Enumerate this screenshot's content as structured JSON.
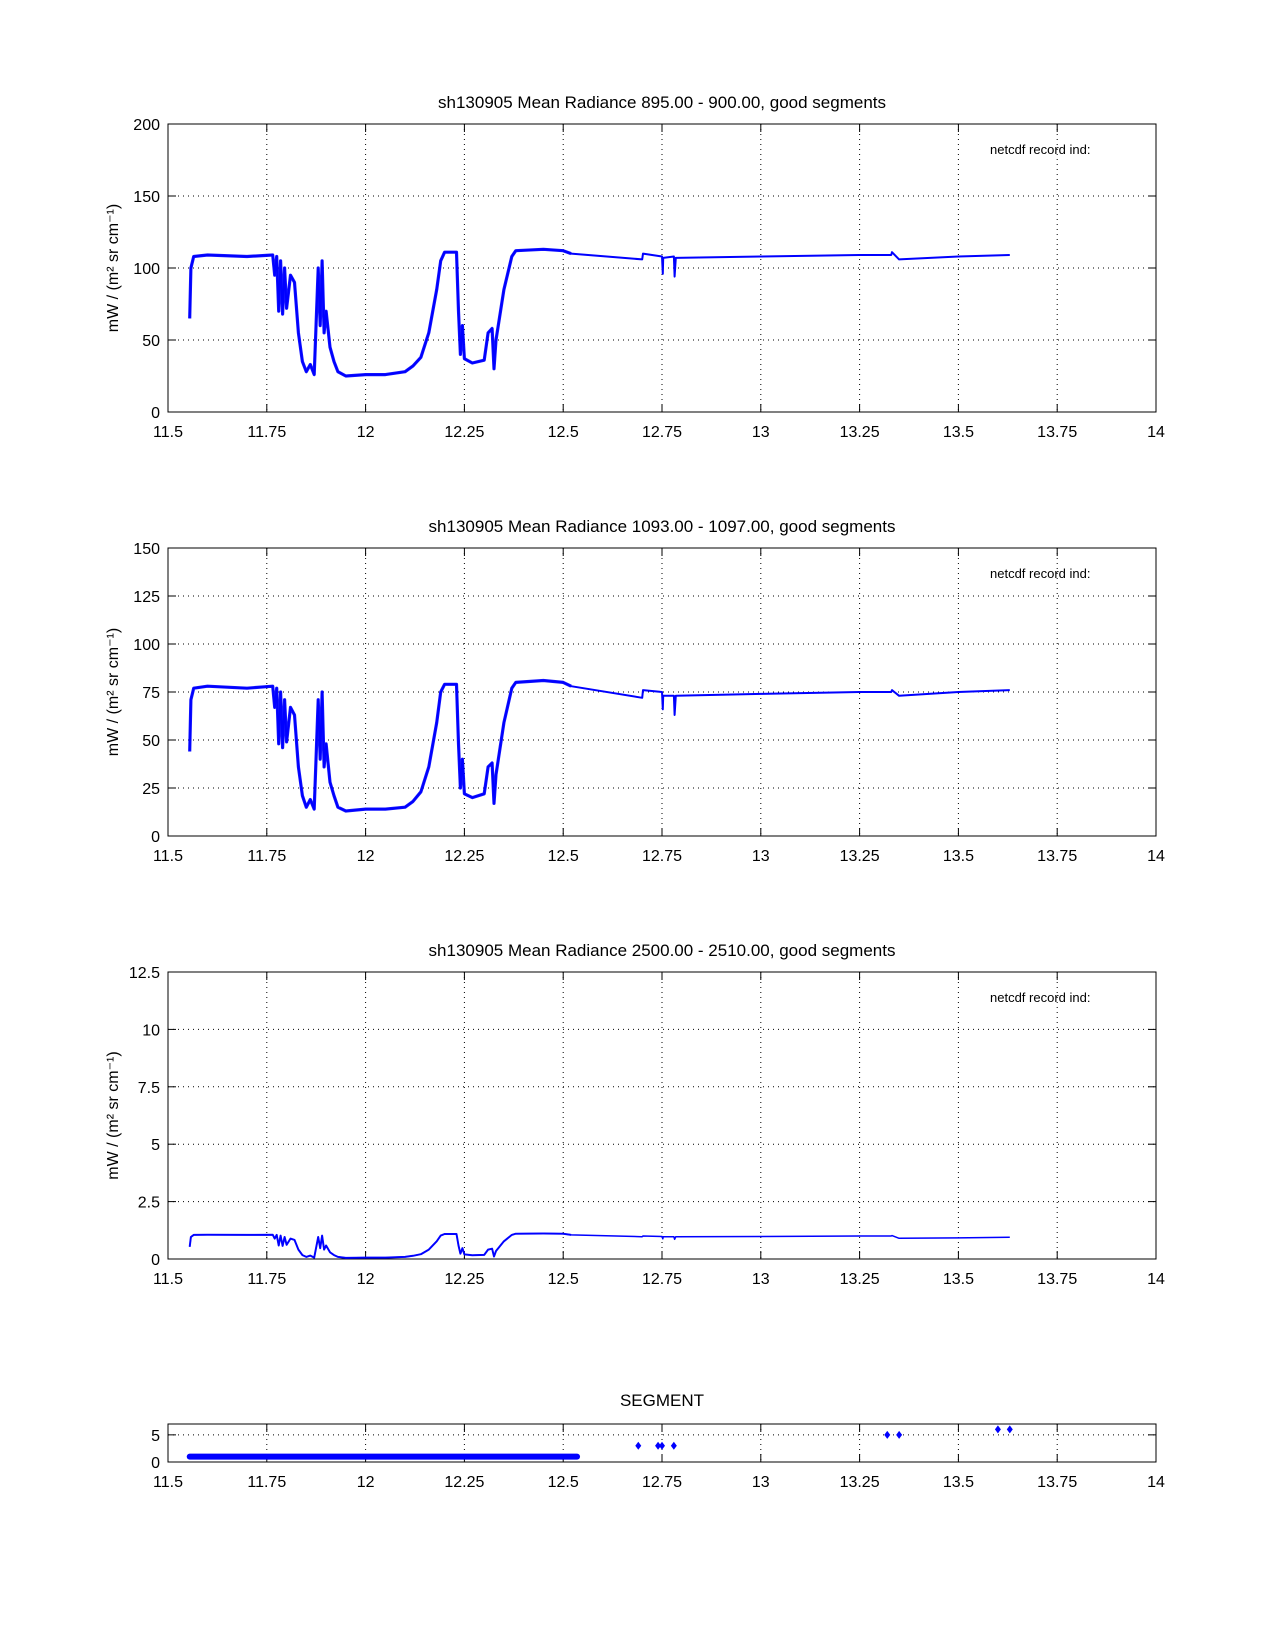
{
  "chart_data": [
    {
      "type": "line",
      "title": "sh130905 Mean Radiance 895.00 - 900.00, good segments",
      "ylabel": "mW / (m² sr cm⁻¹)",
      "annotation": "netcdf record ind:",
      "xlim": [
        11.5,
        14
      ],
      "ylim": [
        0,
        200
      ],
      "xticks": [
        11.5,
        11.75,
        12,
        12.25,
        12.5,
        12.75,
        13,
        13.25,
        13.5,
        13.75,
        14
      ],
      "yticks": [
        0,
        50,
        100,
        150,
        200
      ],
      "grid": true,
      "color": "#0000ff",
      "x": [
        11.555,
        11.558,
        11.565,
        11.6,
        11.7,
        11.765,
        11.77,
        11.775,
        11.78,
        11.785,
        11.79,
        11.795,
        11.8,
        11.81,
        11.82,
        11.83,
        11.84,
        11.85,
        11.86,
        11.87,
        11.88,
        11.885,
        11.89,
        11.895,
        11.9,
        11.91,
        11.92,
        11.93,
        11.95,
        12.0,
        12.05,
        12.1,
        12.12,
        12.14,
        12.16,
        12.18,
        12.19,
        12.2,
        12.23,
        12.235,
        12.24,
        12.245,
        12.25,
        12.27,
        12.3,
        12.31,
        12.32,
        12.325,
        12.33,
        12.35,
        12.37,
        12.38,
        12.45,
        12.5,
        12.52,
        12.7,
        12.702,
        12.75,
        12.752,
        12.753,
        12.78,
        12.782,
        12.785,
        13.0,
        13.25,
        13.33,
        13.332,
        13.35,
        13.5,
        13.63
      ],
      "y": [
        65,
        100,
        108,
        109,
        108,
        109,
        95,
        108,
        70,
        105,
        68,
        100,
        72,
        95,
        90,
        55,
        35,
        28,
        33,
        26,
        100,
        60,
        105,
        55,
        70,
        45,
        35,
        28,
        25,
        26,
        26,
        28,
        32,
        38,
        55,
        85,
        105,
        111,
        111,
        70,
        40,
        60,
        37,
        34,
        36,
        55,
        58,
        30,
        50,
        85,
        108,
        112,
        113,
        112,
        110,
        106,
        110,
        108,
        96,
        107,
        108,
        94,
        107,
        108,
        109,
        109,
        111,
        106,
        108,
        109
      ]
    },
    {
      "type": "line",
      "title": "sh130905 Mean Radiance 1093.00 - 1097.00, good segments",
      "ylabel": "mW / (m² sr cm⁻¹)",
      "annotation": "netcdf record ind:",
      "xlim": [
        11.5,
        14
      ],
      "ylim": [
        0,
        150
      ],
      "xticks": [
        11.5,
        11.75,
        12,
        12.25,
        12.5,
        12.75,
        13,
        13.25,
        13.5,
        13.75,
        14
      ],
      "yticks": [
        0,
        25,
        50,
        75,
        100,
        125,
        150
      ],
      "grid": true,
      "color": "#0000ff",
      "x": [
        11.555,
        11.558,
        11.565,
        11.6,
        11.7,
        11.765,
        11.77,
        11.775,
        11.78,
        11.785,
        11.79,
        11.795,
        11.8,
        11.81,
        11.82,
        11.83,
        11.84,
        11.85,
        11.86,
        11.87,
        11.88,
        11.885,
        11.89,
        11.895,
        11.9,
        11.91,
        11.92,
        11.93,
        11.95,
        12.0,
        12.05,
        12.1,
        12.12,
        12.14,
        12.16,
        12.18,
        12.19,
        12.2,
        12.23,
        12.235,
        12.24,
        12.245,
        12.25,
        12.27,
        12.3,
        12.31,
        12.32,
        12.325,
        12.33,
        12.35,
        12.37,
        12.38,
        12.45,
        12.5,
        12.52,
        12.7,
        12.702,
        12.75,
        12.752,
        12.753,
        12.78,
        12.782,
        12.785,
        13.0,
        13.25,
        13.33,
        13.332,
        13.35,
        13.5,
        13.63
      ],
      "y": [
        44,
        71,
        77,
        78,
        77,
        78,
        67,
        77,
        48,
        75,
        46,
        71,
        49,
        67,
        63,
        36,
        21,
        15,
        19,
        14,
        71,
        40,
        75,
        36,
        48,
        28,
        21,
        15,
        13,
        14,
        14,
        15,
        18,
        23,
        36,
        59,
        75,
        79,
        79,
        48,
        25,
        40,
        22,
        20,
        22,
        36,
        38,
        17,
        32,
        59,
        77,
        80,
        81,
        80,
        78,
        72,
        76,
        75,
        66,
        73,
        73,
        63,
        73,
        74,
        75,
        75,
        76,
        73,
        75,
        76
      ]
    },
    {
      "type": "line",
      "title": "sh130905 Mean Radiance 2500.00 - 2510.00, good segments",
      "ylabel": "mW / (m² sr cm⁻¹)",
      "annotation": "netcdf record ind:",
      "xlim": [
        11.5,
        14
      ],
      "ylim": [
        0,
        12.5
      ],
      "xticks": [
        11.5,
        11.75,
        12,
        12.25,
        12.5,
        12.75,
        13,
        13.25,
        13.5,
        13.75,
        14
      ],
      "yticks": [
        0,
        2.5,
        5,
        7.5,
        10,
        12.5
      ],
      "grid": true,
      "color": "#0000ff",
      "x": [
        11.555,
        11.558,
        11.565,
        11.6,
        11.7,
        11.765,
        11.77,
        11.775,
        11.78,
        11.785,
        11.79,
        11.795,
        11.8,
        11.81,
        11.82,
        11.83,
        11.84,
        11.85,
        11.86,
        11.87,
        11.88,
        11.885,
        11.89,
        11.895,
        11.9,
        11.91,
        11.92,
        11.93,
        11.95,
        12.0,
        12.05,
        12.1,
        12.12,
        12.14,
        12.16,
        12.18,
        12.19,
        12.2,
        12.23,
        12.235,
        12.24,
        12.245,
        12.25,
        12.27,
        12.3,
        12.31,
        12.32,
        12.325,
        12.33,
        12.35,
        12.37,
        12.38,
        12.45,
        12.5,
        12.52,
        12.7,
        12.702,
        12.75,
        12.752,
        12.753,
        12.78,
        12.782,
        12.785,
        13.0,
        13.25,
        13.33,
        13.332,
        13.35,
        13.5,
        13.63
      ],
      "y": [
        0.53,
        0.96,
        1.05,
        1.06,
        1.05,
        1.06,
        0.89,
        1.05,
        0.59,
        1.02,
        0.57,
        0.96,
        0.62,
        0.89,
        0.83,
        0.41,
        0.17,
        0.09,
        0.15,
        0.06,
        0.96,
        0.47,
        1.02,
        0.41,
        0.59,
        0.29,
        0.17,
        0.09,
        0.05,
        0.06,
        0.06,
        0.09,
        0.14,
        0.21,
        0.41,
        0.77,
        1.02,
        1.09,
        1.09,
        0.59,
        0.23,
        0.47,
        0.2,
        0.16,
        0.18,
        0.41,
        0.45,
        0.11,
        0.35,
        0.77,
        1.05,
        1.1,
        1.11,
        1.1,
        1.05,
        0.97,
        1.0,
        0.98,
        0.88,
        0.97,
        0.97,
        0.86,
        0.97,
        0.98,
        1.0,
        1.0,
        1.02,
        0.9,
        0.92,
        0.95
      ]
    },
    {
      "type": "scatter",
      "title": "SEGMENT",
      "xlim": [
        11.5,
        14
      ],
      "ylim": [
        0,
        7
      ],
      "xticks": [
        11.5,
        11.75,
        12,
        12.25,
        12.5,
        12.75,
        13,
        13.25,
        13.5,
        13.75,
        14
      ],
      "yticks": [
        0,
        5
      ],
      "grid": true,
      "color": "#0000ff",
      "segment_runs": [
        {
          "x_start": 11.555,
          "x_end": 12.535,
          "y": 1
        }
      ],
      "points": [
        [
          12.69,
          3
        ],
        [
          12.74,
          3
        ],
        [
          12.75,
          3
        ],
        [
          12.78,
          3
        ],
        [
          13.32,
          5
        ],
        [
          13.35,
          5
        ],
        [
          13.6,
          6
        ],
        [
          13.63,
          6
        ]
      ]
    }
  ]
}
